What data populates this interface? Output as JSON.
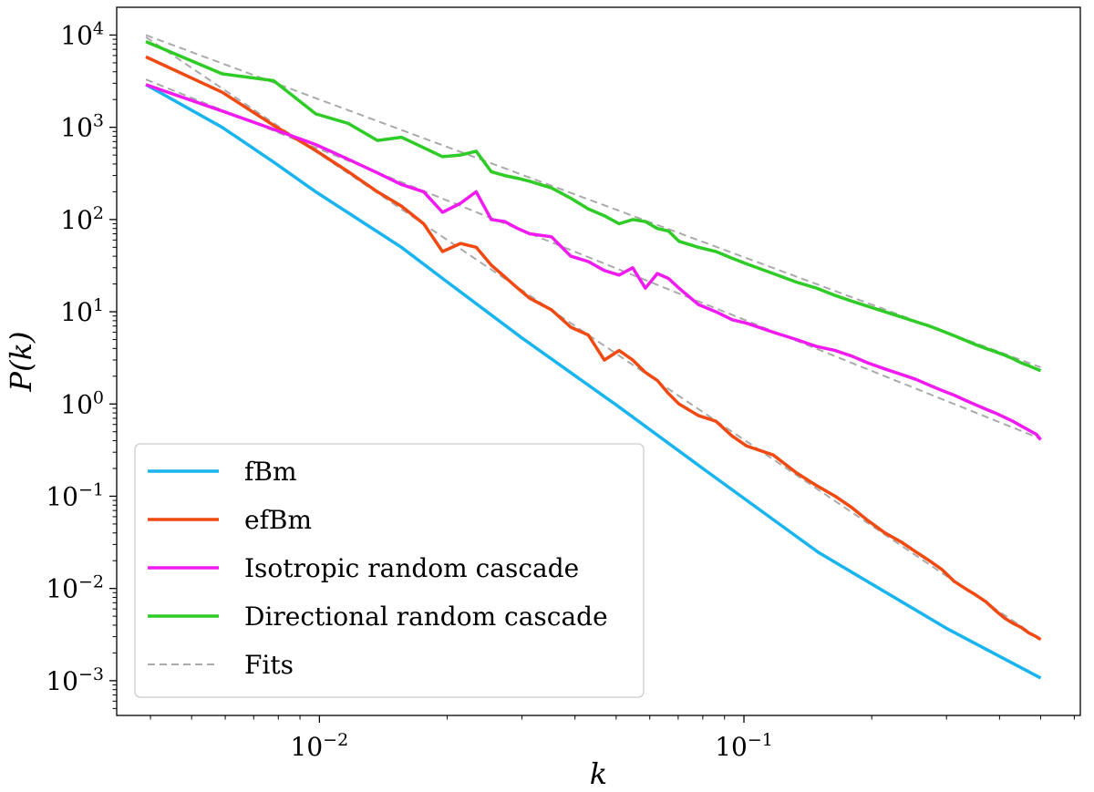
{
  "chart_data": {
    "type": "line",
    "title": "",
    "xlabel": "k",
    "ylabel": "P(k)",
    "xscale": "log",
    "yscale": "log",
    "xlim": [
      0.00333,
      0.62
    ],
    "ylim": [
      0.00042,
      20000
    ],
    "x_ticks": [
      {
        "value": 0.01,
        "label": "10",
        "exp": "−2"
      },
      {
        "value": 0.1,
        "label": "10",
        "exp": "−1"
      }
    ],
    "y_ticks": [
      {
        "value": 0.001,
        "label": "10",
        "exp": "−3"
      },
      {
        "value": 0.01,
        "label": "10",
        "exp": "−2"
      },
      {
        "value": 0.1,
        "label": "10",
        "exp": "−1"
      },
      {
        "value": 1,
        "label": "10",
        "exp": "0"
      },
      {
        "value": 10,
        "label": "10",
        "exp": "1"
      },
      {
        "value": 100,
        "label": "10",
        "exp": "2"
      },
      {
        "value": 1000,
        "label": "10",
        "exp": "3"
      },
      {
        "value": 10000,
        "label": "10",
        "exp": "4"
      }
    ],
    "legend_position": "lower-left",
    "series": [
      {
        "name": "fBm",
        "color": "#1ab4ef",
        "style": "solid",
        "x": [
          0.0039,
          0.0059,
          0.0078,
          0.0098,
          0.0156,
          0.0195,
          0.03,
          0.05,
          0.08,
          0.15,
          0.3,
          0.5
        ],
        "y": [
          2900,
          1000,
          420,
          200,
          50,
          23,
          5.2,
          0.98,
          0.2,
          0.0245,
          0.0037,
          0.00107
        ]
      },
      {
        "name": "efBm",
        "color": "#f04a12",
        "style": "solid",
        "x": [
          0.0039,
          0.0059,
          0.0078,
          0.0098,
          0.0117,
          0.0137,
          0.0156,
          0.0176,
          0.0195,
          0.0215,
          0.0234,
          0.0254,
          0.0273,
          0.0293,
          0.0313,
          0.0352,
          0.0391,
          0.043,
          0.0469,
          0.0508,
          0.0547,
          0.0586,
          0.0625,
          0.0664,
          0.0703,
          0.0781,
          0.0859,
          0.0938,
          0.1016,
          0.1172,
          0.1328,
          0.1484,
          0.1641,
          0.1797,
          0.1953,
          0.2148,
          0.2344,
          0.2539,
          0.2734,
          0.293,
          0.3125,
          0.332,
          0.3516,
          0.3711,
          0.3906,
          0.4102,
          0.4297,
          0.4492,
          0.4688,
          0.4883,
          0.5
        ],
        "y": [
          5800,
          2400,
          1050,
          560,
          330,
          200,
          140,
          90,
          45,
          55,
          50,
          32,
          24,
          18,
          14,
          10.5,
          6.8,
          5.6,
          3.0,
          3.8,
          3.0,
          2.2,
          1.8,
          1.3,
          1.0,
          0.75,
          0.65,
          0.45,
          0.35,
          0.28,
          0.18,
          0.13,
          0.1,
          0.075,
          0.055,
          0.04,
          0.032,
          0.025,
          0.02,
          0.016,
          0.012,
          0.01,
          0.0085,
          0.0072,
          0.0058,
          0.0048,
          0.0042,
          0.0038,
          0.0033,
          0.003,
          0.0028
        ]
      },
      {
        "name": "Isotropic random cascade",
        "color": "#f01bf0",
        "style": "solid",
        "x": [
          0.0039,
          0.0059,
          0.0078,
          0.0098,
          0.0117,
          0.0137,
          0.0156,
          0.0176,
          0.0195,
          0.0215,
          0.0234,
          0.0254,
          0.0273,
          0.0293,
          0.0313,
          0.0352,
          0.0391,
          0.043,
          0.0469,
          0.0508,
          0.0547,
          0.0586,
          0.0625,
          0.0664,
          0.0703,
          0.0781,
          0.0859,
          0.0938,
          0.1016,
          0.1172,
          0.1328,
          0.1484,
          0.1641,
          0.1797,
          0.1953,
          0.2148,
          0.2344,
          0.2539,
          0.2734,
          0.293,
          0.3125,
          0.332,
          0.3516,
          0.3711,
          0.3906,
          0.4102,
          0.4297,
          0.4492,
          0.4688,
          0.4883,
          0.5
        ],
        "y": [
          2900,
          1500,
          950,
          650,
          450,
          320,
          240,
          200,
          120,
          150,
          200,
          100,
          95,
          80,
          70,
          65,
          40,
          35,
          28,
          25,
          30,
          18,
          26,
          23,
          18,
          12,
          10,
          8.2,
          7.5,
          6.0,
          5.0,
          4.2,
          3.8,
          3.3,
          2.8,
          2.4,
          2.1,
          1.85,
          1.6,
          1.4,
          1.25,
          1.1,
          0.98,
          0.88,
          0.8,
          0.72,
          0.65,
          0.58,
          0.52,
          0.47,
          0.41
        ]
      },
      {
        "name": "Directional random cascade",
        "color": "#2fcb26",
        "style": "solid",
        "x": [
          0.0039,
          0.0059,
          0.0078,
          0.0098,
          0.0117,
          0.0137,
          0.0156,
          0.0176,
          0.0195,
          0.0215,
          0.0234,
          0.0254,
          0.0273,
          0.0293,
          0.0313,
          0.0352,
          0.0391,
          0.043,
          0.0469,
          0.0508,
          0.0547,
          0.0586,
          0.0625,
          0.0664,
          0.0703,
          0.0781,
          0.0859,
          0.0938,
          0.1016,
          0.1172,
          0.1328,
          0.1484,
          0.1641,
          0.1797,
          0.1953,
          0.2148,
          0.2344,
          0.2539,
          0.2734,
          0.293,
          0.3125,
          0.332,
          0.3516,
          0.3711,
          0.3906,
          0.4102,
          0.4297,
          0.4492,
          0.4688,
          0.4883,
          0.5
        ],
        "y": [
          8500,
          3800,
          3200,
          1400,
          1100,
          720,
          780,
          600,
          480,
          500,
          550,
          330,
          300,
          280,
          260,
          220,
          170,
          130,
          110,
          90,
          100,
          95,
          80,
          75,
          58,
          50,
          45,
          38,
          33,
          26,
          21,
          18,
          15,
          13,
          11.5,
          10,
          8.8,
          7.8,
          7.0,
          6.2,
          5.5,
          4.9,
          4.4,
          4.0,
          3.7,
          3.4,
          3.1,
          2.8,
          2.6,
          2.4,
          2.3
        ]
      },
      {
        "name": "Fits",
        "color": "#aaaaaa",
        "style": "dashed",
        "x": [
          0.0039,
          0.5
        ],
        "y": [
          0,
          0
        ],
        "fits": [
          {
            "x": [
              0.0039,
              0.5
            ],
            "y": [
              10000,
              2.5
            ]
          },
          {
            "x": [
              0.0039,
              0.5
            ],
            "y": [
              3300,
              0.42
            ]
          },
          {
            "x": [
              0.0039,
              0.5
            ],
            "y": [
              9500,
              0.0028
            ]
          }
        ]
      }
    ]
  }
}
